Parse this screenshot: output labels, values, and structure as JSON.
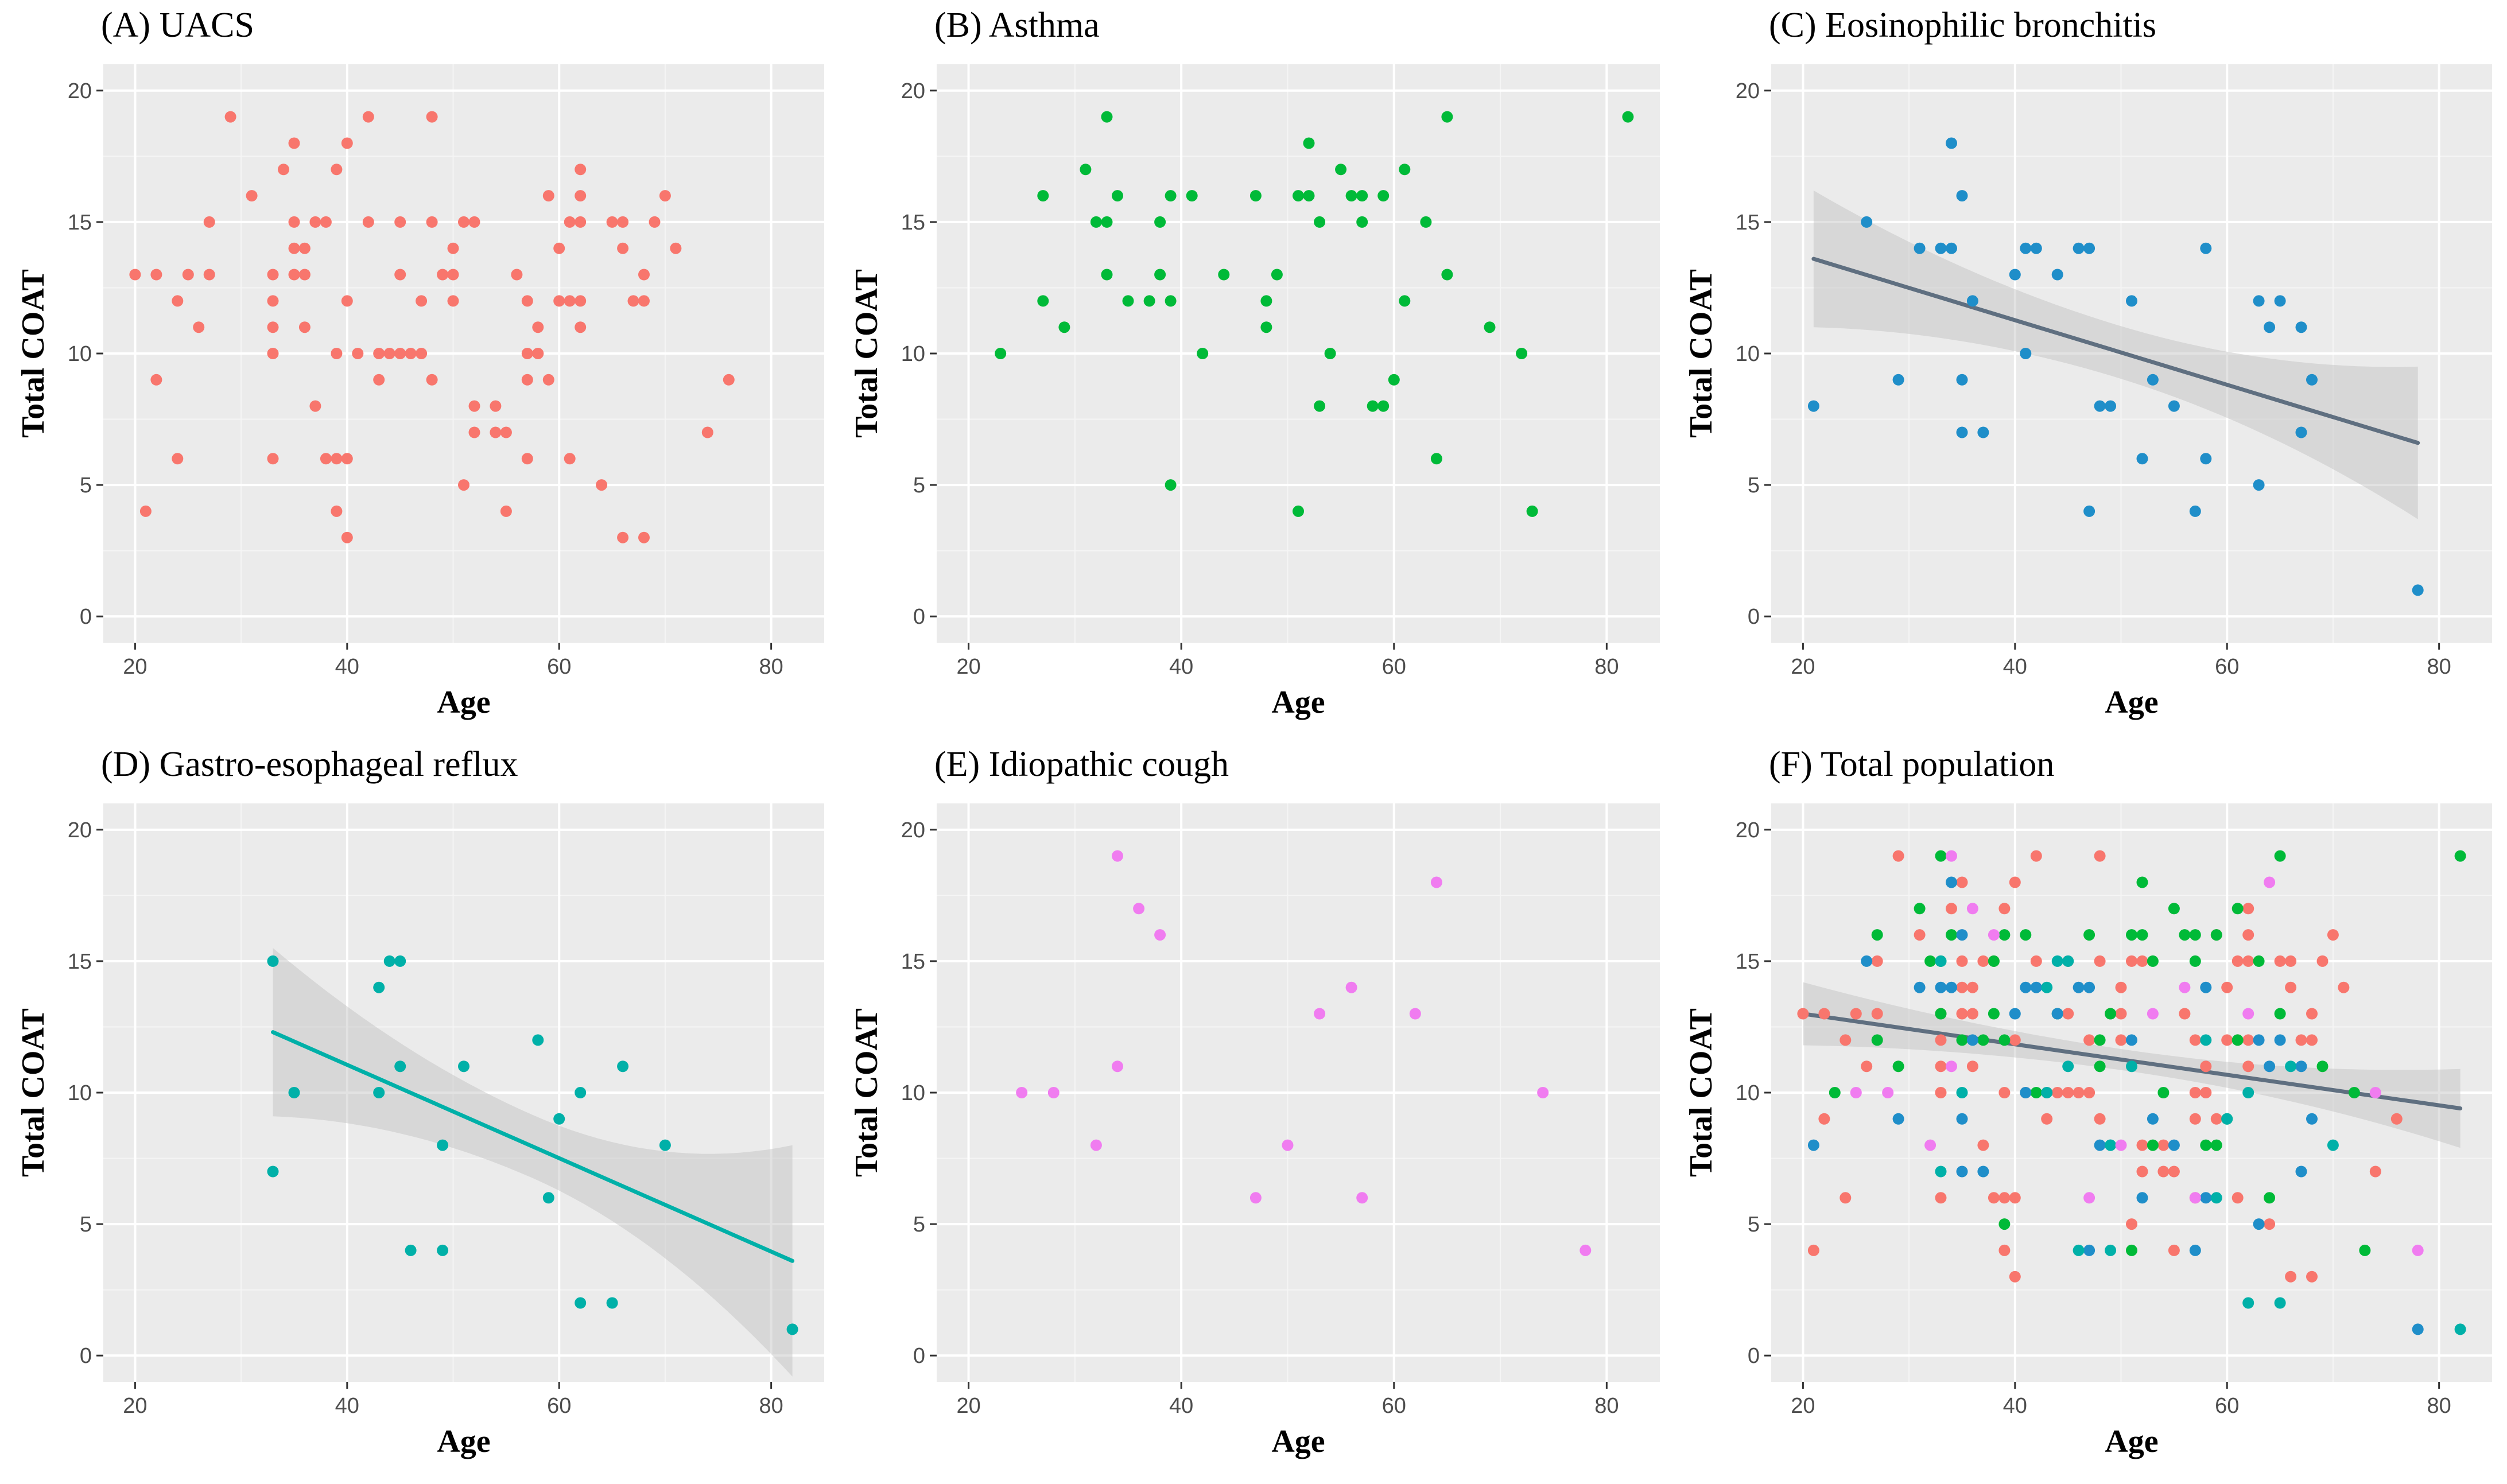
{
  "colors": {
    "panel_bg": "#ebebeb",
    "grid_major": "#ffffff",
    "grid_minor": "#f5f5f5",
    "tick": "#333333",
    "ribbon": "#bfbfbf",
    "regression_line_gray": "#5f6f80",
    "uacs": "#f8766d",
    "asthma": "#00ba38",
    "eosinophilic": "#1f8ec9",
    "gerd": "#00b0a8",
    "idiopathic": "#f07cf0"
  },
  "chart_data": [
    {
      "type": "scatter",
      "title": "(A) UACS",
      "xlabel": "Age",
      "ylabel": "Total COAT",
      "xlim": [
        17,
        85
      ],
      "ylim": [
        -1,
        21
      ],
      "xticks": [
        20,
        40,
        60,
        80
      ],
      "yticks": [
        0,
        5,
        10,
        15,
        20
      ],
      "grid": true,
      "series": [
        {
          "name": "UACS",
          "color": "#f8766d",
          "points": [
            [
              20,
              13
            ],
            [
              21,
              4
            ],
            [
              22,
              9
            ],
            [
              22,
              13
            ],
            [
              24,
              12
            ],
            [
              24,
              6
            ],
            [
              25,
              13
            ],
            [
              26,
              11
            ],
            [
              27,
              13
            ],
            [
              27,
              15
            ],
            [
              29,
              19
            ],
            [
              31,
              16
            ],
            [
              33,
              13
            ],
            [
              33,
              12
            ],
            [
              33,
              11
            ],
            [
              33,
              10
            ],
            [
              33,
              6
            ],
            [
              34,
              17
            ],
            [
              35,
              18
            ],
            [
              35,
              15
            ],
            [
              35,
              14
            ],
            [
              35,
              13
            ],
            [
              36,
              14
            ],
            [
              36,
              13
            ],
            [
              36,
              11
            ],
            [
              37,
              8
            ],
            [
              37,
              15
            ],
            [
              38,
              15
            ],
            [
              38,
              6
            ],
            [
              39,
              17
            ],
            [
              39,
              6
            ],
            [
              39,
              4
            ],
            [
              39,
              10
            ],
            [
              40,
              18
            ],
            [
              40,
              12
            ],
            [
              40,
              6
            ],
            [
              40,
              3
            ],
            [
              41,
              10
            ],
            [
              42,
              19
            ],
            [
              42,
              15
            ],
            [
              43,
              10
            ],
            [
              43,
              9
            ],
            [
              44,
              10
            ],
            [
              45,
              15
            ],
            [
              45,
              13
            ],
            [
              45,
              10
            ],
            [
              46,
              10
            ],
            [
              47,
              12
            ],
            [
              47,
              10
            ],
            [
              48,
              19
            ],
            [
              48,
              9
            ],
            [
              48,
              15
            ],
            [
              49,
              13
            ],
            [
              50,
              13
            ],
            [
              50,
              12
            ],
            [
              50,
              14
            ],
            [
              51,
              15
            ],
            [
              51,
              5
            ],
            [
              52,
              15
            ],
            [
              52,
              8
            ],
            [
              52,
              7
            ],
            [
              54,
              8
            ],
            [
              54,
              7
            ],
            [
              55,
              4
            ],
            [
              55,
              7
            ],
            [
              56,
              13
            ],
            [
              57,
              12
            ],
            [
              57,
              10
            ],
            [
              57,
              9
            ],
            [
              57,
              6
            ],
            [
              58,
              10
            ],
            [
              58,
              11
            ],
            [
              59,
              16
            ],
            [
              59,
              9
            ],
            [
              60,
              14
            ],
            [
              60,
              12
            ],
            [
              61,
              15
            ],
            [
              61,
              6
            ],
            [
              61,
              12
            ],
            [
              62,
              17
            ],
            [
              62,
              16
            ],
            [
              62,
              15
            ],
            [
              62,
              12
            ],
            [
              62,
              11
            ],
            [
              64,
              5
            ],
            [
              65,
              15
            ],
            [
              66,
              15
            ],
            [
              66,
              14
            ],
            [
              66,
              3
            ],
            [
              67,
              12
            ],
            [
              68,
              13
            ],
            [
              68,
              12
            ],
            [
              68,
              3
            ],
            [
              69,
              15
            ],
            [
              70,
              16
            ],
            [
              71,
              14
            ],
            [
              74,
              7
            ],
            [
              76,
              9
            ]
          ]
        }
      ]
    },
    {
      "type": "scatter",
      "title": "(B) Asthma",
      "xlabel": "Age",
      "ylabel": "Total COAT",
      "xlim": [
        17,
        85
      ],
      "ylim": [
        -1,
        21
      ],
      "xticks": [
        20,
        40,
        60,
        80
      ],
      "yticks": [
        0,
        5,
        10,
        15,
        20
      ],
      "grid": true,
      "series": [
        {
          "name": "Asthma",
          "color": "#00ba38",
          "points": [
            [
              23,
              10
            ],
            [
              27,
              16
            ],
            [
              27,
              12
            ],
            [
              29,
              11
            ],
            [
              31,
              17
            ],
            [
              32,
              15
            ],
            [
              33,
              19
            ],
            [
              33,
              15
            ],
            [
              33,
              13
            ],
            [
              34,
              16
            ],
            [
              35,
              12
            ],
            [
              37,
              12
            ],
            [
              38,
              13
            ],
            [
              38,
              15
            ],
            [
              39,
              16
            ],
            [
              39,
              12
            ],
            [
              39,
              5
            ],
            [
              41,
              16
            ],
            [
              42,
              10
            ],
            [
              44,
              13
            ],
            [
              47,
              16
            ],
            [
              48,
              12
            ],
            [
              48,
              11
            ],
            [
              49,
              13
            ],
            [
              51,
              16
            ],
            [
              51,
              4
            ],
            [
              52,
              18
            ],
            [
              52,
              16
            ],
            [
              53,
              15
            ],
            [
              53,
              8
            ],
            [
              54,
              10
            ],
            [
              55,
              17
            ],
            [
              56,
              16
            ],
            [
              57,
              16
            ],
            [
              57,
              15
            ],
            [
              58,
              8
            ],
            [
              59,
              8
            ],
            [
              59,
              16
            ],
            [
              60,
              9
            ],
            [
              61,
              17
            ],
            [
              61,
              12
            ],
            [
              63,
              15
            ],
            [
              64,
              6
            ],
            [
              65,
              19
            ],
            [
              65,
              13
            ],
            [
              69,
              11
            ],
            [
              72,
              10
            ],
            [
              73,
              4
            ],
            [
              82,
              19
            ]
          ]
        }
      ]
    },
    {
      "type": "scatter",
      "title": "(C) Eosinophilic bronchitis",
      "xlabel": "Age",
      "ylabel": "Total COAT",
      "xlim": [
        17,
        85
      ],
      "ylim": [
        -1,
        21
      ],
      "xticks": [
        20,
        40,
        60,
        80
      ],
      "yticks": [
        0,
        5,
        10,
        15,
        20
      ],
      "grid": true,
      "regression": {
        "x": [
          21,
          78
        ],
        "y": [
          13.6,
          6.6
        ],
        "ci_width_start": 2.6,
        "ci_width_min": 1.0,
        "ci_width_end": 2.9,
        "color": "#5f6f80"
      },
      "series": [
        {
          "name": "Eosinophilic bronchitis",
          "color": "#1f8ec9",
          "points": [
            [
              21,
              8
            ],
            [
              26,
              15
            ],
            [
              29,
              9
            ],
            [
              31,
              14
            ],
            [
              33,
              14
            ],
            [
              34,
              18
            ],
            [
              34,
              14
            ],
            [
              35,
              16
            ],
            [
              35,
              9
            ],
            [
              35,
              7
            ],
            [
              36,
              12
            ],
            [
              37,
              7
            ],
            [
              40,
              13
            ],
            [
              41,
              14
            ],
            [
              41,
              10
            ],
            [
              42,
              14
            ],
            [
              44,
              13
            ],
            [
              46,
              14
            ],
            [
              47,
              14
            ],
            [
              47,
              4
            ],
            [
              48,
              8
            ],
            [
              49,
              8
            ],
            [
              51,
              12
            ],
            [
              52,
              6
            ],
            [
              53,
              9
            ],
            [
              55,
              8
            ],
            [
              57,
              4
            ],
            [
              58,
              14
            ],
            [
              58,
              6
            ],
            [
              63,
              12
            ],
            [
              63,
              5
            ],
            [
              64,
              11
            ],
            [
              65,
              12
            ],
            [
              67,
              11
            ],
            [
              67,
              7
            ],
            [
              68,
              9
            ],
            [
              78,
              1
            ]
          ]
        }
      ]
    },
    {
      "type": "scatter",
      "title": "(D) Gastro-esophageal reflux",
      "xlabel": "Age",
      "ylabel": "Total COAT",
      "xlim": [
        17,
        85
      ],
      "ylim": [
        -1,
        21
      ],
      "xticks": [
        20,
        40,
        60,
        80
      ],
      "yticks": [
        0,
        5,
        10,
        15,
        20
      ],
      "grid": true,
      "regression": {
        "x": [
          33,
          82
        ],
        "y": [
          12.3,
          3.6
        ],
        "ci_width_start": 3.2,
        "ci_width_min": 1.2,
        "ci_width_end": 4.4,
        "color": "#00b0a8"
      },
      "series": [
        {
          "name": "Gastro-esophageal reflux",
          "color": "#00b0a8",
          "points": [
            [
              33,
              15
            ],
            [
              33,
              7
            ],
            [
              35,
              10
            ],
            [
              43,
              14
            ],
            [
              43,
              10
            ],
            [
              44,
              15
            ],
            [
              45,
              15
            ],
            [
              45,
              11
            ],
            [
              46,
              4
            ],
            [
              49,
              8
            ],
            [
              49,
              4
            ],
            [
              51,
              11
            ],
            [
              58,
              12
            ],
            [
              59,
              6
            ],
            [
              60,
              9
            ],
            [
              62,
              10
            ],
            [
              62,
              2
            ],
            [
              65,
              2
            ],
            [
              66,
              11
            ],
            [
              70,
              8
            ],
            [
              82,
              1
            ]
          ]
        }
      ]
    },
    {
      "type": "scatter",
      "title": "(E) Idiopathic cough",
      "xlabel": "Age",
      "ylabel": "Total COAT",
      "xlim": [
        17,
        85
      ],
      "ylim": [
        -1,
        21
      ],
      "xticks": [
        20,
        40,
        60,
        80
      ],
      "yticks": [
        0,
        5,
        10,
        15,
        20
      ],
      "grid": true,
      "series": [
        {
          "name": "Idiopathic cough",
          "color": "#f07cf0",
          "points": [
            [
              25,
              10
            ],
            [
              28,
              10
            ],
            [
              32,
              8
            ],
            [
              34,
              19
            ],
            [
              34,
              11
            ],
            [
              36,
              17
            ],
            [
              38,
              16
            ],
            [
              47,
              6
            ],
            [
              50,
              8
            ],
            [
              53,
              13
            ],
            [
              56,
              14
            ],
            [
              57,
              6
            ],
            [
              62,
              13
            ],
            [
              64,
              18
            ],
            [
              74,
              10
            ],
            [
              78,
              4
            ]
          ]
        }
      ]
    },
    {
      "type": "scatter",
      "title": "(F) Total population",
      "xlabel": "Age",
      "ylabel": "Total COAT",
      "xlim": [
        17,
        85
      ],
      "ylim": [
        -1,
        21
      ],
      "xticks": [
        20,
        40,
        60,
        80
      ],
      "yticks": [
        0,
        5,
        10,
        15,
        20
      ],
      "grid": true,
      "combine_all": true,
      "regression": {
        "x": [
          20,
          82
        ],
        "y": [
          13.0,
          9.4
        ],
        "ci_width_start": 1.2,
        "ci_width_min": 0.4,
        "ci_width_end": 1.5,
        "color": "#5f6f80"
      }
    }
  ]
}
